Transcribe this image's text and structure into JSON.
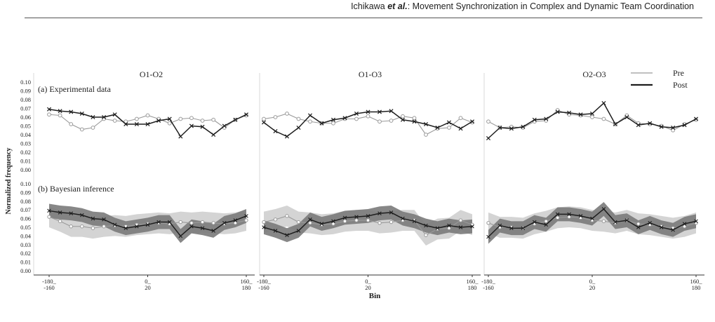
{
  "header": {
    "authors": "Ichikawa",
    "etal": "et al.",
    "separator": ": ",
    "title": "Movement Synchronization in Complex and Dynamic Team Coordination"
  },
  "figure": {
    "ylabel": "Normalized frequency",
    "xlabel": "Bin",
    "panel_a_label": "(a) Experimental data",
    "panel_b_label": "(b) Bayesian inference",
    "column_titles": [
      "O1-O2",
      "O1-O3",
      "O2-O3"
    ],
    "legend": [
      "Pre",
      "Post"
    ],
    "colors": {
      "pre": "#9a9a9a",
      "post": "#1e1e1e",
      "band_outer": "#cfcfcf",
      "band_inner": "#7a7a7a"
    }
  },
  "chart_data": {
    "type": "line",
    "xlabel": "Bin",
    "ylabel": "Normalized frequency",
    "ylim": [
      0,
      0.1
    ],
    "y_ticks": [
      "0.00",
      "0.01",
      "0.02",
      "0.03",
      "0.04",
      "0.05",
      "0.06",
      "0.07",
      "0.08",
      "0.09",
      "0.10"
    ],
    "x_tick_labels": [
      {
        "top": "-180_",
        "bottom": "-160"
      },
      {
        "top": "0_",
        "bottom": "20"
      },
      {
        "top": "160_",
        "bottom": "180"
      }
    ],
    "bins": 19,
    "panels": [
      {
        "name": "O1-O2",
        "experimental": {
          "pre": [
            0.063,
            0.062,
            0.052,
            0.046,
            0.048,
            0.058,
            0.056,
            0.055,
            0.058,
            0.062,
            0.058,
            0.053,
            0.058,
            0.059,
            0.056,
            0.057,
            0.048,
            0.057,
            0.062
          ],
          "post": [
            0.069,
            0.067,
            0.066,
            0.064,
            0.06,
            0.06,
            0.063,
            0.052,
            0.052,
            0.052,
            0.056,
            0.058,
            0.038,
            0.05,
            0.049,
            0.04,
            0.05,
            0.057,
            0.063
          ]
        },
        "bayesian": {
          "pre": [
            0.062,
            0.057,
            0.051,
            0.051,
            0.049,
            0.051,
            0.052,
            0.051,
            0.053,
            0.054,
            0.055,
            0.054,
            0.056,
            0.055,
            0.056,
            0.055,
            0.054,
            0.055,
            0.058
          ],
          "post": [
            0.069,
            0.067,
            0.066,
            0.064,
            0.06,
            0.059,
            0.053,
            0.049,
            0.051,
            0.053,
            0.056,
            0.056,
            0.04,
            0.051,
            0.049,
            0.046,
            0.055,
            0.058,
            0.063
          ]
        }
      },
      {
        "name": "O1-O3",
        "experimental": {
          "pre": [
            0.058,
            0.06,
            0.064,
            0.058,
            0.055,
            0.053,
            0.053,
            0.058,
            0.058,
            0.061,
            0.055,
            0.056,
            0.061,
            0.059,
            0.04,
            0.047,
            0.048,
            0.059,
            0.054
          ],
          "post": [
            0.054,
            0.044,
            0.038,
            0.048,
            0.062,
            0.053,
            0.057,
            0.059,
            0.064,
            0.066,
            0.066,
            0.067,
            0.057,
            0.055,
            0.052,
            0.048,
            0.054,
            0.047,
            0.055
          ]
        },
        "bayesian": {
          "pre": [
            0.056,
            0.059,
            0.063,
            0.056,
            0.055,
            0.053,
            0.054,
            0.057,
            0.058,
            0.058,
            0.055,
            0.056,
            0.058,
            0.058,
            0.041,
            0.048,
            0.049,
            0.058,
            0.053
          ],
          "post": [
            0.05,
            0.046,
            0.041,
            0.046,
            0.059,
            0.054,
            0.057,
            0.061,
            0.062,
            0.063,
            0.066,
            0.067,
            0.06,
            0.057,
            0.052,
            0.049,
            0.052,
            0.05,
            0.051
          ]
        }
      },
      {
        "name": "O2-O3",
        "experimental": {
          "pre": [
            0.055,
            0.048,
            0.049,
            0.048,
            0.055,
            0.056,
            0.068,
            0.063,
            0.062,
            0.06,
            0.058,
            0.052,
            0.062,
            0.053,
            0.052,
            0.05,
            0.045,
            0.052,
            0.057
          ],
          "post": [
            0.036,
            0.048,
            0.047,
            0.049,
            0.057,
            0.058,
            0.066,
            0.065,
            0.063,
            0.064,
            0.076,
            0.052,
            0.06,
            0.051,
            0.053,
            0.049,
            0.048,
            0.051,
            0.058
          ]
        },
        "bayesian": {
          "pre": [
            0.055,
            0.05,
            0.05,
            0.049,
            0.054,
            0.057,
            0.061,
            0.062,
            0.061,
            0.058,
            0.057,
            0.055,
            0.058,
            0.054,
            0.053,
            0.051,
            0.049,
            0.051,
            0.055
          ],
          "post": [
            0.039,
            0.052,
            0.049,
            0.049,
            0.056,
            0.053,
            0.065,
            0.065,
            0.063,
            0.06,
            0.071,
            0.056,
            0.058,
            0.05,
            0.055,
            0.05,
            0.047,
            0.054,
            0.057
          ]
        }
      }
    ]
  }
}
